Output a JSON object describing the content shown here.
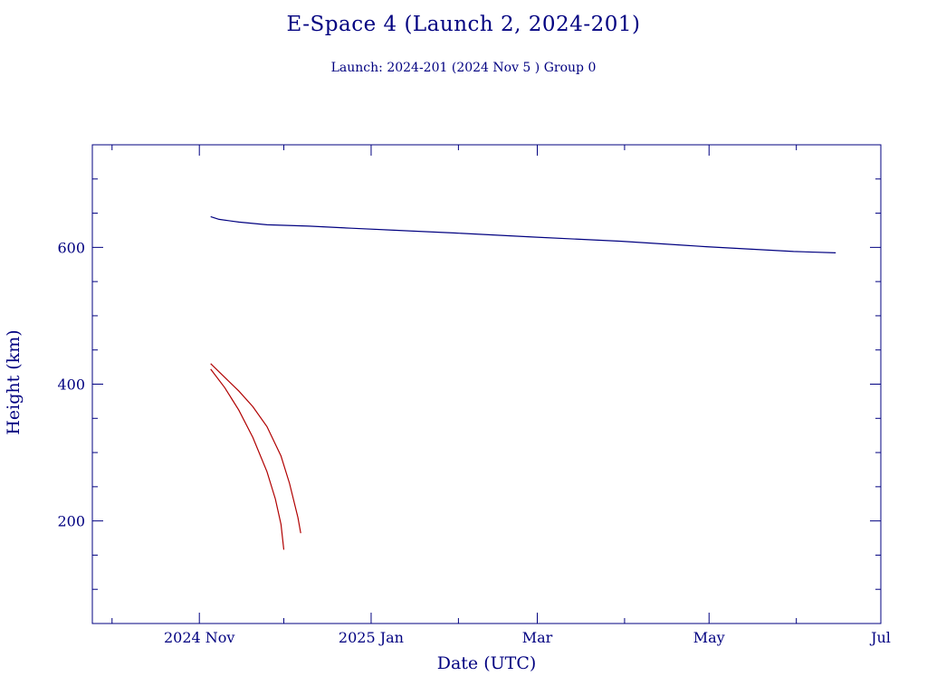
{
  "title": "E-Space 4 (Launch 2, 2024-201)",
  "subtitle": "Launch: 2024-201  (2024 Nov  5 )  Group 0",
  "chart_data": {
    "type": "line",
    "title": "E-Space 4 (Launch 2, 2024-201)",
    "subtitle": "Launch: 2024-201  (2024 Nov  5 )  Group 0",
    "xlabel": "Date (UTC)",
    "ylabel": "Height (km)",
    "xlim": [
      "2024-09-24",
      "2025-07-01"
    ],
    "ylim": [
      50,
      750
    ],
    "x_ticks": [
      {
        "date": "2024-11-01",
        "label": "2024 Nov"
      },
      {
        "date": "2025-01-01",
        "label": "2025 Jan"
      },
      {
        "date": "2025-03-01",
        "label": "Mar"
      },
      {
        "date": "2025-05-01",
        "label": "May"
      },
      {
        "date": "2025-07-01",
        "label": "Jul"
      }
    ],
    "y_ticks": [
      200,
      400,
      600
    ],
    "grid": false,
    "series": [
      {
        "color": "#000080",
        "points": [
          [
            "2024-11-05",
            645
          ],
          [
            "2024-11-08",
            641
          ],
          [
            "2024-11-15",
            637
          ],
          [
            "2024-11-25",
            633
          ],
          [
            "2024-12-10",
            631
          ],
          [
            "2024-12-25",
            628
          ],
          [
            "2025-01-10",
            625
          ],
          [
            "2025-01-31",
            621
          ],
          [
            "2025-02-28",
            615
          ],
          [
            "2025-03-31",
            609
          ],
          [
            "2025-04-30",
            601
          ],
          [
            "2025-05-31",
            594
          ],
          [
            "2025-06-15",
            592
          ]
        ]
      },
      {
        "color": "#b00000",
        "points": [
          [
            "2024-11-05",
            430
          ],
          [
            "2024-11-10",
            410
          ],
          [
            "2024-11-15",
            390
          ],
          [
            "2024-11-20",
            367
          ],
          [
            "2024-11-25",
            338
          ],
          [
            "2024-11-30",
            295
          ],
          [
            "2024-12-03",
            255
          ],
          [
            "2024-12-06",
            205
          ],
          [
            "2024-12-07",
            182
          ]
        ]
      },
      {
        "color": "#b00000",
        "points": [
          [
            "2024-11-05",
            422
          ],
          [
            "2024-11-10",
            395
          ],
          [
            "2024-11-15",
            362
          ],
          [
            "2024-11-20",
            322
          ],
          [
            "2024-11-25",
            272
          ],
          [
            "2024-11-28",
            232
          ],
          [
            "2024-11-30",
            195
          ],
          [
            "2024-12-01",
            158
          ]
        ]
      }
    ]
  }
}
